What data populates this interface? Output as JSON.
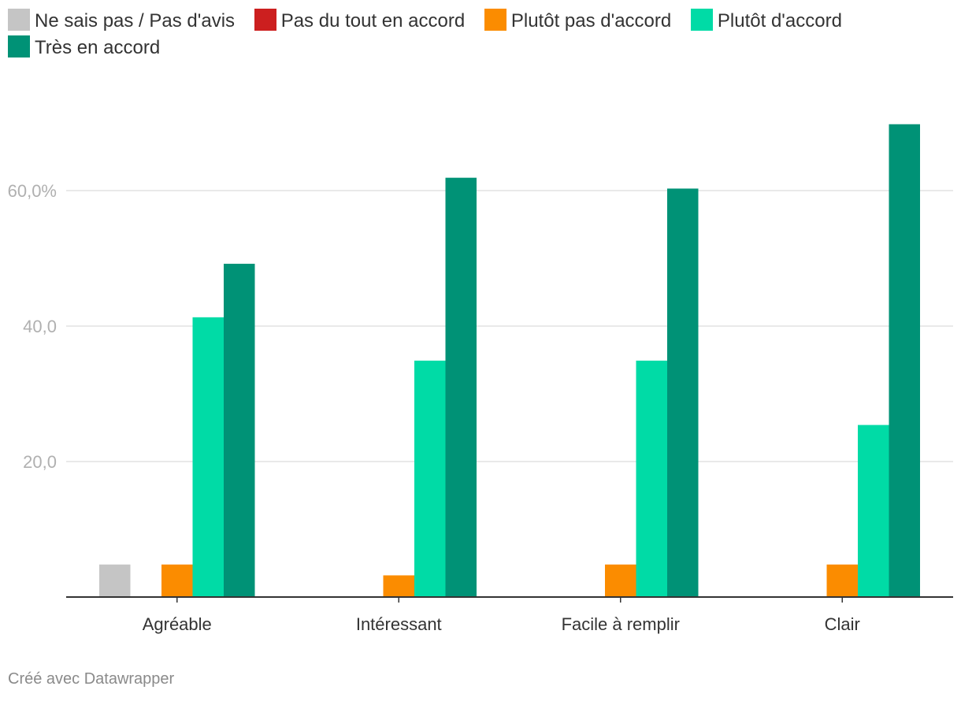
{
  "chart_data": {
    "type": "bar",
    "categories": [
      "Agréable",
      "Intéressant",
      "Facile à remplir",
      "Clair"
    ],
    "series": [
      {
        "name": "Ne sais pas / Pas d'avis",
        "color": "#c5c5c5",
        "values": [
          4.8,
          0,
          0,
          0
        ]
      },
      {
        "name": "Pas du tout en accord",
        "color": "#cc1f1f",
        "values": [
          0,
          0,
          0,
          0
        ]
      },
      {
        "name": "Plutôt pas d'accord",
        "color": "#fb8c00",
        "values": [
          4.8,
          3.2,
          4.8,
          4.8
        ]
      },
      {
        "name": "Plutôt d'accord",
        "color": "#00dba6",
        "values": [
          41.3,
          34.9,
          34.9,
          25.4
        ]
      },
      {
        "name": "Très en accord",
        "color": "#009276",
        "values": [
          49.2,
          61.9,
          60.3,
          69.8
        ]
      }
    ],
    "yticks": [
      20,
      40,
      60
    ],
    "ytick_labels": [
      "20,0",
      "40,0",
      "60,0%"
    ],
    "ylim": [
      0,
      70
    ],
    "grid": true,
    "legend_position": "top"
  },
  "footer": {
    "credit": "Créé avec Datawrapper"
  }
}
